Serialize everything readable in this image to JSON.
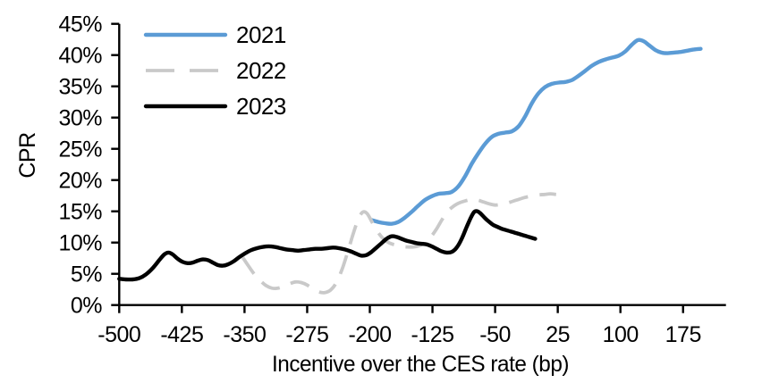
{
  "chart_data": {
    "type": "line",
    "title": "",
    "xlabel": "Incentive over the CES rate (bp)",
    "ylabel": "CPR",
    "x_ticks": [
      -500,
      -425,
      -350,
      -275,
      -200,
      -125,
      -50,
      25,
      100,
      175
    ],
    "y_ticks": [
      "0%",
      "5%",
      "10%",
      "15%",
      "20%",
      "25%",
      "30%",
      "35%",
      "40%",
      "45%"
    ],
    "y_tick_values": [
      0,
      5,
      10,
      15,
      20,
      25,
      30,
      35,
      40,
      45
    ],
    "xlim": [
      -500,
      226
    ],
    "ylim": [
      0,
      45
    ],
    "grid": false,
    "legend_position": "top-left-inside",
    "legend": [
      "2021",
      "2022",
      "2023"
    ],
    "series": [
      {
        "name": "2021",
        "color": "#5B9BD5",
        "style": "solid",
        "points": [
          [
            -198,
            13.6
          ],
          [
            -190,
            13.3
          ],
          [
            -182,
            13.1
          ],
          [
            -174,
            13.0
          ],
          [
            -166,
            13.3
          ],
          [
            -158,
            14.0
          ],
          [
            -150,
            14.9
          ],
          [
            -142,
            15.9
          ],
          [
            -134,
            16.8
          ],
          [
            -126,
            17.4
          ],
          [
            -118,
            17.8
          ],
          [
            -110,
            17.9
          ],
          [
            -102,
            18.1
          ],
          [
            -94,
            19.0
          ],
          [
            -86,
            20.6
          ],
          [
            -78,
            22.6
          ],
          [
            -70,
            24.3
          ],
          [
            -62,
            25.8
          ],
          [
            -54,
            26.9
          ],
          [
            -46,
            27.4
          ],
          [
            -38,
            27.6
          ],
          [
            -30,
            27.8
          ],
          [
            -22,
            28.6
          ],
          [
            -14,
            30.2
          ],
          [
            -6,
            32.3
          ],
          [
            2,
            33.9
          ],
          [
            10,
            34.9
          ],
          [
            18,
            35.4
          ],
          [
            26,
            35.6
          ],
          [
            34,
            35.7
          ],
          [
            42,
            36.0
          ],
          [
            50,
            36.7
          ],
          [
            58,
            37.5
          ],
          [
            66,
            38.3
          ],
          [
            74,
            38.9
          ],
          [
            82,
            39.3
          ],
          [
            90,
            39.6
          ],
          [
            98,
            39.9
          ],
          [
            106,
            40.6
          ],
          [
            114,
            41.7
          ],
          [
            121,
            42.4
          ],
          [
            128,
            42.2
          ],
          [
            135,
            41.5
          ],
          [
            142,
            40.8
          ],
          [
            149,
            40.4
          ],
          [
            156,
            40.3
          ],
          [
            164,
            40.4
          ],
          [
            172,
            40.5
          ],
          [
            180,
            40.7
          ],
          [
            188,
            40.9
          ],
          [
            196,
            41.0
          ]
        ]
      },
      {
        "name": "2022",
        "color": "#C9C9C9",
        "style": "dashed",
        "points": [
          [
            -352,
            7.6
          ],
          [
            -345,
            6.2
          ],
          [
            -338,
            4.9
          ],
          [
            -331,
            3.9
          ],
          [
            -324,
            3.1
          ],
          [
            -317,
            2.7
          ],
          [
            -310,
            2.7
          ],
          [
            -303,
            3.0
          ],
          [
            -296,
            3.4
          ],
          [
            -289,
            3.7
          ],
          [
            -282,
            3.6
          ],
          [
            -275,
            3.2
          ],
          [
            -268,
            2.6
          ],
          [
            -261,
            2.1
          ],
          [
            -254,
            2.0
          ],
          [
            -247,
            2.4
          ],
          [
            -240,
            3.6
          ],
          [
            -233,
            5.8
          ],
          [
            -226,
            8.7
          ],
          [
            -219,
            11.8
          ],
          [
            -213,
            14.0
          ],
          [
            -208,
            14.9
          ],
          [
            -203,
            14.6
          ],
          [
            -197,
            13.2
          ],
          [
            -190,
            11.6
          ],
          [
            -183,
            10.5
          ],
          [
            -176,
            9.9
          ],
          [
            -169,
            9.6
          ],
          [
            -162,
            9.4
          ],
          [
            -155,
            9.3
          ],
          [
            -148,
            9.3
          ],
          [
            -141,
            9.5
          ],
          [
            -134,
            10.0
          ],
          [
            -127,
            10.9
          ],
          [
            -120,
            12.2
          ],
          [
            -113,
            13.8
          ],
          [
            -106,
            15.1
          ],
          [
            -99,
            15.9
          ],
          [
            -92,
            16.4
          ],
          [
            -85,
            16.7
          ],
          [
            -78,
            16.9
          ],
          [
            -71,
            16.8
          ],
          [
            -64,
            16.5
          ],
          [
            -57,
            16.2
          ],
          [
            -50,
            16.0
          ],
          [
            -43,
            16.1
          ],
          [
            -36,
            16.3
          ],
          [
            -29,
            16.6
          ],
          [
            -22,
            16.9
          ],
          [
            -15,
            17.2
          ],
          [
            -8,
            17.4
          ],
          [
            1,
            17.6
          ],
          [
            9,
            17.7
          ],
          [
            16,
            17.8
          ],
          [
            23,
            17.7
          ]
        ]
      },
      {
        "name": "2023",
        "color": "#000000",
        "style": "solid",
        "points": [
          [
            -500,
            4.2
          ],
          [
            -492,
            4.1
          ],
          [
            -484,
            4.1
          ],
          [
            -476,
            4.3
          ],
          [
            -468,
            4.9
          ],
          [
            -460,
            5.9
          ],
          [
            -452,
            7.2
          ],
          [
            -446,
            8.1
          ],
          [
            -441,
            8.4
          ],
          [
            -436,
            8.1
          ],
          [
            -430,
            7.4
          ],
          [
            -424,
            6.9
          ],
          [
            -418,
            6.7
          ],
          [
            -412,
            6.8
          ],
          [
            -406,
            7.1
          ],
          [
            -400,
            7.3
          ],
          [
            -394,
            7.2
          ],
          [
            -388,
            6.8
          ],
          [
            -382,
            6.4
          ],
          [
            -376,
            6.3
          ],
          [
            -370,
            6.5
          ],
          [
            -363,
            7.0
          ],
          [
            -356,
            7.7
          ],
          [
            -349,
            8.3
          ],
          [
            -342,
            8.8
          ],
          [
            -335,
            9.1
          ],
          [
            -328,
            9.3
          ],
          [
            -321,
            9.4
          ],
          [
            -314,
            9.3
          ],
          [
            -307,
            9.1
          ],
          [
            -300,
            8.9
          ],
          [
            -293,
            8.8
          ],
          [
            -286,
            8.7
          ],
          [
            -279,
            8.8
          ],
          [
            -272,
            8.9
          ],
          [
            -265,
            9.0
          ],
          [
            -258,
            9.0
          ],
          [
            -251,
            9.1
          ],
          [
            -244,
            9.2
          ],
          [
            -237,
            9.1
          ],
          [
            -230,
            8.9
          ],
          [
            -223,
            8.6
          ],
          [
            -216,
            8.2
          ],
          [
            -210,
            7.9
          ],
          [
            -204,
            8.0
          ],
          [
            -198,
            8.5
          ],
          [
            -192,
            9.2
          ],
          [
            -186,
            9.9
          ],
          [
            -180,
            10.6
          ],
          [
            -174,
            11.0
          ],
          [
            -168,
            10.9
          ],
          [
            -162,
            10.6
          ],
          [
            -156,
            10.3
          ],
          [
            -150,
            10.1
          ],
          [
            -144,
            9.9
          ],
          [
            -138,
            9.8
          ],
          [
            -132,
            9.7
          ],
          [
            -126,
            9.4
          ],
          [
            -120,
            9.0
          ],
          [
            -114,
            8.6
          ],
          [
            -108,
            8.4
          ],
          [
            -102,
            8.5
          ],
          [
            -96,
            9.2
          ],
          [
            -90,
            10.6
          ],
          [
            -84,
            12.5
          ],
          [
            -79,
            14.0
          ],
          [
            -75,
            14.9
          ],
          [
            -71,
            15.0
          ],
          [
            -67,
            14.6
          ],
          [
            -62,
            13.9
          ],
          [
            -57,
            13.3
          ],
          [
            -52,
            12.8
          ],
          [
            -47,
            12.5
          ],
          [
            -42,
            12.2
          ],
          [
            -37,
            12.0
          ],
          [
            -32,
            11.8
          ],
          [
            -27,
            11.6
          ],
          [
            -22,
            11.4
          ],
          [
            -17,
            11.2
          ],
          [
            -12,
            11.0
          ],
          [
            -7,
            10.8
          ],
          [
            -2,
            10.6
          ]
        ]
      }
    ],
    "axis_color": "#000000"
  }
}
